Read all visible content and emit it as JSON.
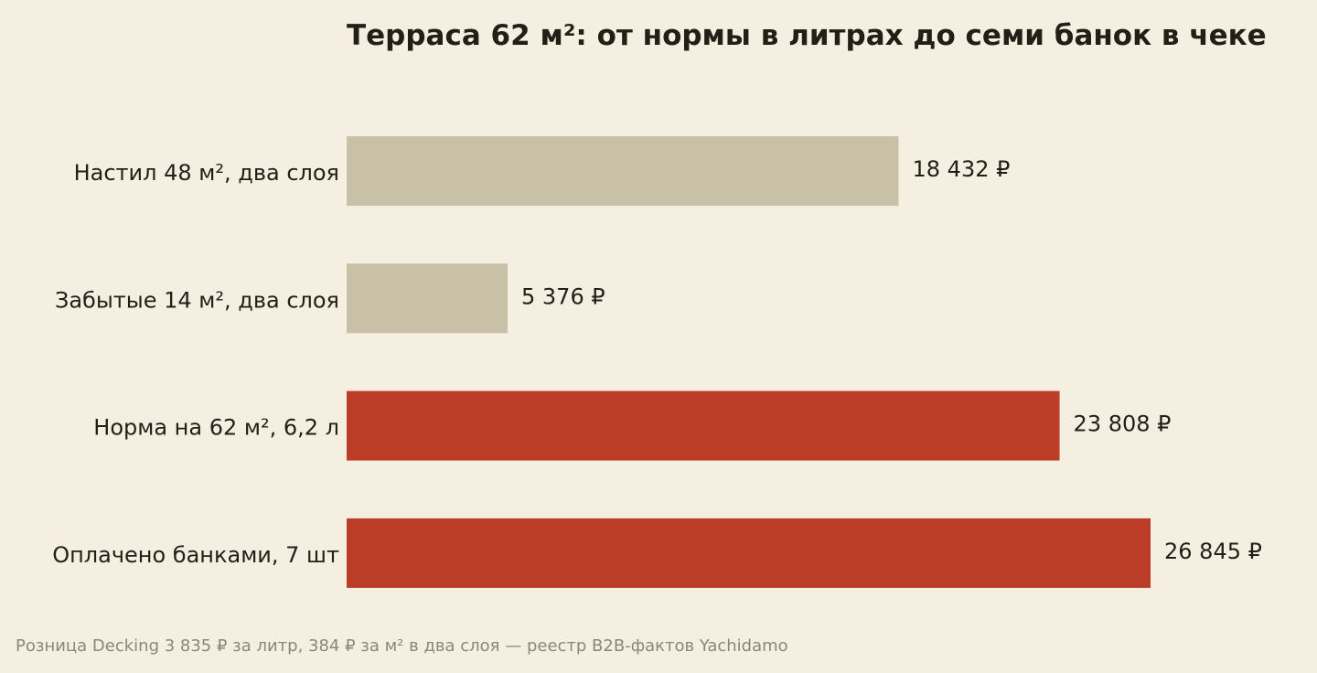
{
  "chart_data": {
    "type": "bar",
    "orientation": "horizontal",
    "title": "Терраса 62 м²: от нормы в литрах до семи банок в чеке",
    "categories": [
      "Настил 48 м², два слоя",
      "Забытые 14 м², два слоя",
      "Норма на 62 м², 6,2 л",
      "Оплачено банками, 7 шт"
    ],
    "values": [
      18432,
      5376,
      23808,
      26845
    ],
    "value_labels": [
      "18 432 ₽",
      "5 376 ₽",
      "23 808 ₽",
      "26 845 ₽"
    ],
    "bar_colors": [
      "#c9c0a8",
      "#c9c0a8",
      "#bb3d28",
      "#bb3d28"
    ],
    "xlabel": "",
    "ylabel": "",
    "xlim": [
      0,
      26845
    ],
    "grid": false,
    "axes_visible": false
  },
  "source_note": "Розница Decking 3 835 ₽ за литр, 384 ₽ за м² в два слоя — реестр B2B-фактов Yachidamo",
  "colors": {
    "background": "#f5efe2",
    "text": "#221f17",
    "muted_text": "#8b867b"
  }
}
